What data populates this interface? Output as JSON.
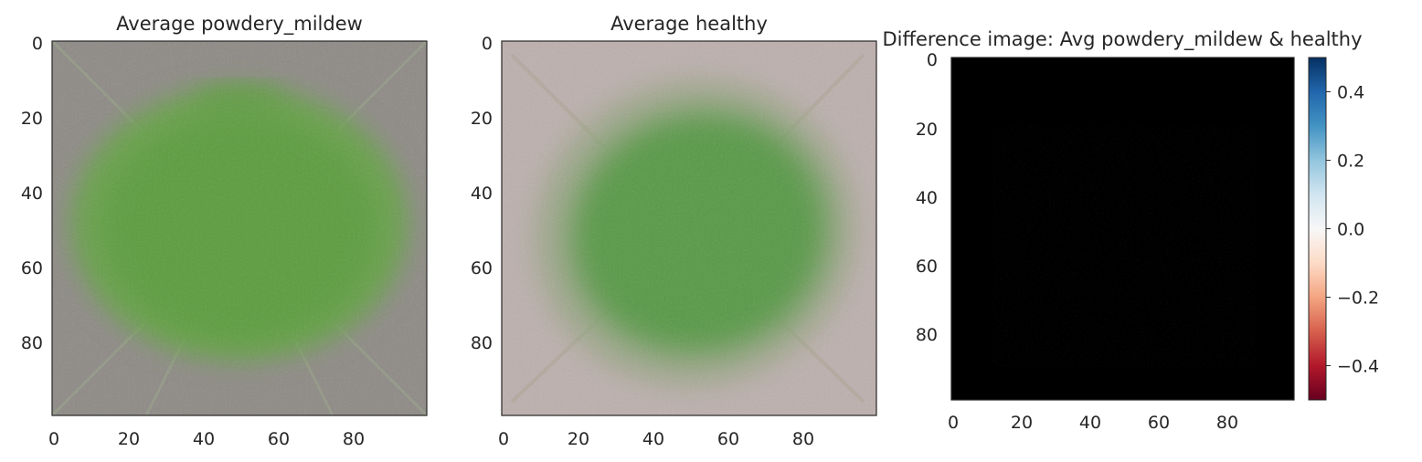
{
  "chart_data": [
    {
      "type": "image",
      "title": "Average powdery_mildew",
      "image_size": [
        100,
        100
      ],
      "xticks": [
        0,
        20,
        40,
        60,
        80
      ],
      "yticks": [
        0,
        20,
        40,
        60,
        80
      ],
      "background_color": "#8f8b87",
      "leaf_color": "#5fa244",
      "grid": false
    },
    {
      "type": "image",
      "title": "Average healthy",
      "image_size": [
        100,
        100
      ],
      "xticks": [
        0,
        20,
        40,
        60,
        80
      ],
      "yticks": [
        0,
        20,
        40,
        60,
        80
      ],
      "background_color": "#bdb0ae",
      "leaf_color": "#5a9a48",
      "grid": false
    },
    {
      "type": "heatmap",
      "title": "Difference image: Avg powdery_mildew & healthy",
      "image_size": [
        100,
        100
      ],
      "xticks": [
        0,
        20,
        40,
        60,
        80
      ],
      "yticks": [
        0,
        20,
        40,
        60,
        80
      ],
      "colormap": "RdBu",
      "colorbar": {
        "range": [
          -0.5,
          0.5
        ],
        "ticks": [
          0.4,
          0.2,
          0.0,
          -0.2,
          -0.4
        ],
        "tick_labels": [
          "0.4",
          "0.2",
          "0.0",
          "−0.2",
          "−0.4"
        ],
        "colors": [
          "#67001f",
          "#b2182b",
          "#d6604d",
          "#f4a582",
          "#fddbc7",
          "#f7f7f7",
          "#d1e5f0",
          "#92c5de",
          "#4393c3",
          "#2166ac",
          "#053061"
        ]
      },
      "image_color": "#000000",
      "grid": false
    }
  ]
}
